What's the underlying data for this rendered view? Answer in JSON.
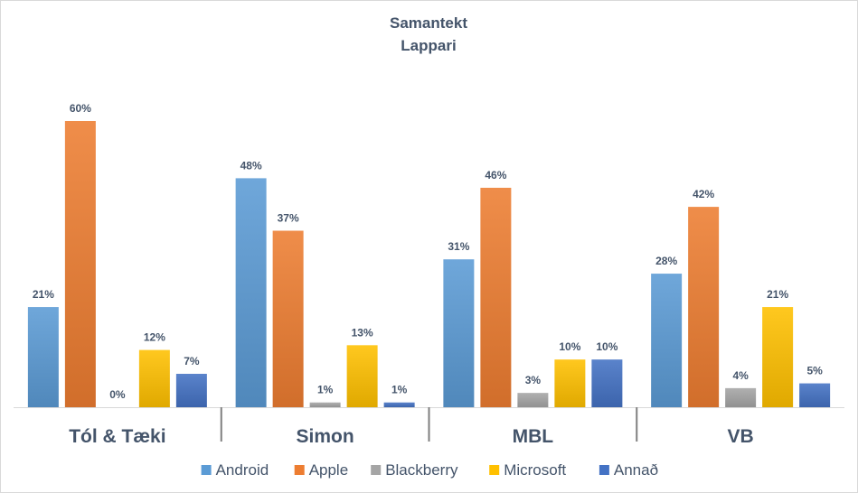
{
  "chart_data": {
    "type": "bar",
    "title": "Samantekt",
    "subtitle": "Lappari",
    "categories": [
      "Tól & Tæki",
      "Simon",
      "MBL",
      "VB"
    ],
    "series": [
      {
        "name": "Android",
        "color": "#5b9bd5",
        "values": [
          21,
          48,
          31,
          28
        ],
        "labels": [
          "21%",
          "48%",
          "31%",
          "28%"
        ]
      },
      {
        "name": "Apple",
        "color": "#ed7d31",
        "values": [
          60,
          37,
          46,
          42
        ],
        "labels": [
          "60%",
          "37%",
          "46%",
          "42%"
        ]
      },
      {
        "name": "Blackberry",
        "color": "#a5a5a5",
        "values": [
          0,
          1,
          3,
          4
        ],
        "labels": [
          "0%",
          "1%",
          "3%",
          "4%"
        ]
      },
      {
        "name": "Microsoft",
        "color": "#ffc000",
        "values": [
          12,
          13,
          10,
          21
        ],
        "labels": [
          "12%",
          "13%",
          "10%",
          "21%"
        ]
      },
      {
        "name": "Annað",
        "color": "#4472c4",
        "values": [
          7,
          1,
          10,
          5
        ],
        "labels": [
          "7%",
          "1%",
          "10%",
          "5%"
        ]
      }
    ],
    "ylim": [
      0,
      60
    ],
    "grid": false,
    "legend_position": "bottom"
  }
}
